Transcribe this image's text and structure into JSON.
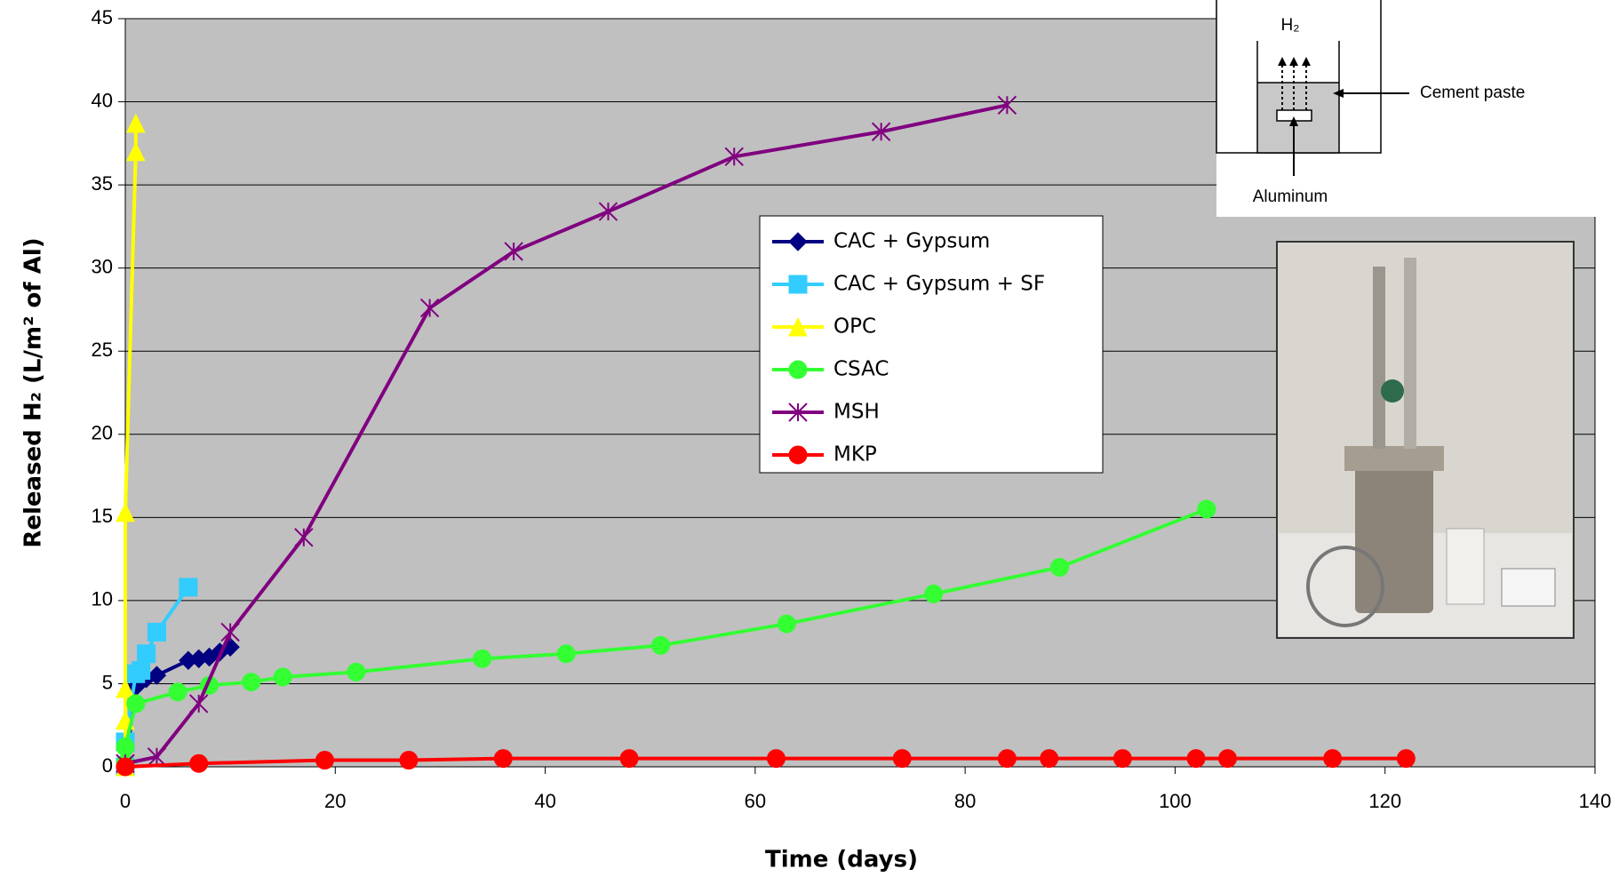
{
  "chart_data": {
    "type": "line",
    "xlabel": "Time (days)",
    "ylabel": "Released H₂ (L/m² of Al)",
    "xlim": [
      0,
      140
    ],
    "xticks": [
      0,
      20,
      40,
      60,
      80,
      100,
      120,
      140
    ],
    "ylim": [
      0,
      45
    ],
    "yticks": [
      0,
      5,
      10,
      15,
      20,
      25,
      30,
      35,
      40,
      45
    ],
    "grid": true,
    "background": "#c0c0c0",
    "series": [
      {
        "name": "CAC + Gypsum",
        "color": "#000080",
        "marker": "diamond",
        "x": [
          0,
          1,
          2,
          3,
          6,
          7,
          8,
          9,
          10
        ],
        "values": [
          0,
          4.8,
          5.3,
          5.5,
          6.4,
          6.5,
          6.6,
          6.9,
          7.2
        ]
      },
      {
        "name": "CAC + Gypsum + SF",
        "color": "#33ccff",
        "marker": "square",
        "x": [
          0,
          0,
          1,
          1.5,
          2,
          3,
          6
        ],
        "values": [
          0,
          1.5,
          5.6,
          5.8,
          6.8,
          8.1,
          10.8
        ]
      },
      {
        "name": "OPC",
        "color": "#ffff00",
        "marker": "triangle",
        "x": [
          0,
          0,
          0,
          0,
          1,
          1
        ],
        "values": [
          0,
          2.8,
          4.7,
          15.3,
          37,
          38.7
        ]
      },
      {
        "name": "CSAC",
        "color": "#33ff33",
        "marker": "circle",
        "x": [
          0,
          0,
          1,
          5,
          8,
          12,
          15,
          22,
          34,
          42,
          51,
          63,
          77,
          89,
          103
        ],
        "values": [
          0.2,
          1.2,
          3.8,
          4.5,
          4.9,
          5.1,
          5.4,
          5.7,
          6.5,
          6.8,
          7.3,
          8.6,
          10.4,
          12,
          15.5
        ]
      },
      {
        "name": "MSH",
        "color": "#800080",
        "marker": "star",
        "x": [
          0,
          3,
          7,
          10,
          17,
          29,
          37,
          46,
          58,
          72,
          84
        ],
        "values": [
          0.2,
          0.6,
          3.8,
          8.1,
          13.8,
          27.6,
          31,
          33.4,
          36.7,
          38.2,
          39.8
        ]
      },
      {
        "name": "MKP",
        "color": "#ff0000",
        "marker": "circle",
        "x": [
          0,
          7,
          19,
          27,
          36,
          48,
          62,
          74,
          84,
          88,
          95,
          102,
          105,
          115,
          122
        ],
        "values": [
          0,
          0.2,
          0.4,
          0.4,
          0.5,
          0.5,
          0.5,
          0.5,
          0.5,
          0.5,
          0.5,
          0.5,
          0.5,
          0.5,
          0.5
        ]
      }
    ],
    "annotations": {
      "gas": "H₂",
      "paste": "Cement paste",
      "metal": "Aluminum"
    }
  }
}
